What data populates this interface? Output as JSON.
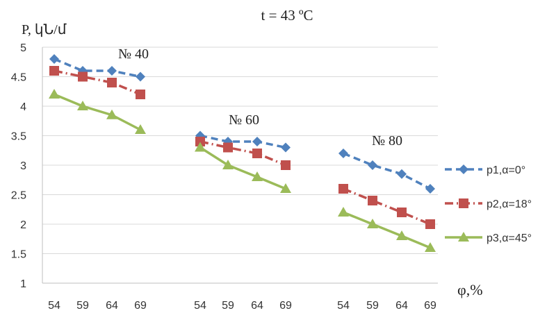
{
  "chart_data": {
    "type": "line",
    "title": "t = 43 ºC",
    "ylabel": "P, կՆ/մ",
    "xlabel": "φ,%",
    "ylim": [
      1,
      5
    ],
    "yticks": [
      "1",
      "1.5",
      "2",
      "2.5",
      "3",
      "3.5",
      "4",
      "4.5",
      "5"
    ],
    "ytick_values": [
      1,
      1.5,
      2,
      2.5,
      3,
      3.5,
      4,
      4.5,
      5
    ],
    "grid": true,
    "legend_position": "right",
    "groups": [
      {
        "label": "№ 40",
        "x": [
          "54",
          "59",
          "64",
          "69"
        ]
      },
      {
        "label": "№ 60",
        "x": [
          "54",
          "59",
          "64",
          "69"
        ]
      },
      {
        "label": "№ 80",
        "x": [
          "54",
          "59",
          "64",
          "69"
        ]
      }
    ],
    "series": [
      {
        "name": "p1,α=0°",
        "color": "#4f81bd",
        "marker": "diamond",
        "line_style": "dashed",
        "values": [
          [
            4.8,
            4.6,
            4.6,
            4.5
          ],
          [
            3.5,
            3.4,
            3.4,
            3.3
          ],
          [
            3.2,
            3.0,
            2.85,
            2.6
          ]
        ]
      },
      {
        "name": "p2,α=18°",
        "color": "#c0504d",
        "marker": "square",
        "line_style": "dash-dot",
        "values": [
          [
            4.6,
            4.5,
            4.4,
            4.2
          ],
          [
            3.4,
            3.3,
            3.2,
            3.0
          ],
          [
            2.6,
            2.4,
            2.2,
            2.0
          ]
        ]
      },
      {
        "name": "p3,α=45°",
        "color": "#9bbb59",
        "marker": "triangle",
        "line_style": "solid",
        "values": [
          [
            4.2,
            4.0,
            3.85,
            3.6
          ],
          [
            3.3,
            3.0,
            2.8,
            2.6
          ],
          [
            2.2,
            2.0,
            1.8,
            1.6
          ]
        ]
      }
    ]
  }
}
